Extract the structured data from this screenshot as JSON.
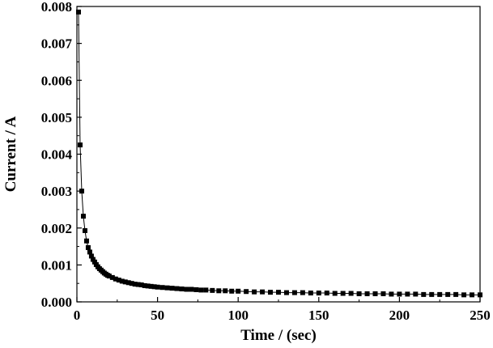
{
  "chart_data": {
    "type": "scatter",
    "title": "",
    "xlabel": "Time / (sec)",
    "ylabel": "Current / A",
    "xlim": [
      0,
      250
    ],
    "ylim": [
      0,
      0.008
    ],
    "xticks": [
      "0",
      "50",
      "100",
      "150",
      "200",
      "250"
    ],
    "yticks": [
      "0.000",
      "0.001",
      "0.002",
      "0.003",
      "0.004",
      "0.005",
      "0.006",
      "0.007",
      "0.008"
    ],
    "grid": false,
    "legend": "none",
    "marker_color": "#000000",
    "series": [
      {
        "x": [
          1,
          2,
          3,
          4,
          5,
          6,
          7,
          8,
          9,
          10,
          11,
          12,
          13,
          14,
          15,
          16,
          17,
          18,
          19,
          20,
          22,
          24,
          26,
          28,
          30,
          32,
          34,
          36,
          38,
          40,
          42,
          44,
          46,
          48,
          50,
          53,
          56,
          59,
          62,
          65,
          68,
          71,
          74,
          77,
          80,
          84,
          88,
          92,
          96,
          100,
          105,
          110,
          115,
          120,
          125,
          130,
          135,
          140,
          145,
          150,
          155,
          160,
          165,
          170,
          175,
          180,
          185,
          190,
          195,
          200,
          205,
          210,
          215,
          220,
          225,
          230,
          235,
          240,
          245,
          250
        ],
        "y": [
          0.00785,
          0.00425,
          0.003,
          0.00232,
          0.00193,
          0.00165,
          0.00147,
          0.00135,
          0.00124,
          0.00115,
          0.00108,
          0.00101,
          0.00095,
          0.0009,
          0.00086,
          0.00082,
          0.00078,
          0.00075,
          0.00072,
          0.0007,
          0.00066,
          0.00062,
          0.00059,
          0.00056,
          0.00054,
          0.00052,
          0.0005,
          0.00048,
          0.00047,
          0.00046,
          0.00044,
          0.00043,
          0.00042,
          0.00041,
          0.0004,
          0.00039,
          0.00038,
          0.00037,
          0.00036,
          0.00035,
          0.00034,
          0.00034,
          0.00033,
          0.00032,
          0.00032,
          0.00031,
          0.0003,
          0.0003,
          0.00029,
          0.00029,
          0.00028,
          0.00027,
          0.00027,
          0.00026,
          0.00026,
          0.00025,
          0.00025,
          0.00025,
          0.00024,
          0.00024,
          0.00024,
          0.00023,
          0.00023,
          0.00023,
          0.00022,
          0.00022,
          0.00022,
          0.00022,
          0.00021,
          0.00021,
          0.00021,
          0.00021,
          0.0002,
          0.0002,
          0.0002,
          0.0002,
          0.0002,
          0.00019,
          0.00019,
          0.00019
        ]
      }
    ]
  }
}
